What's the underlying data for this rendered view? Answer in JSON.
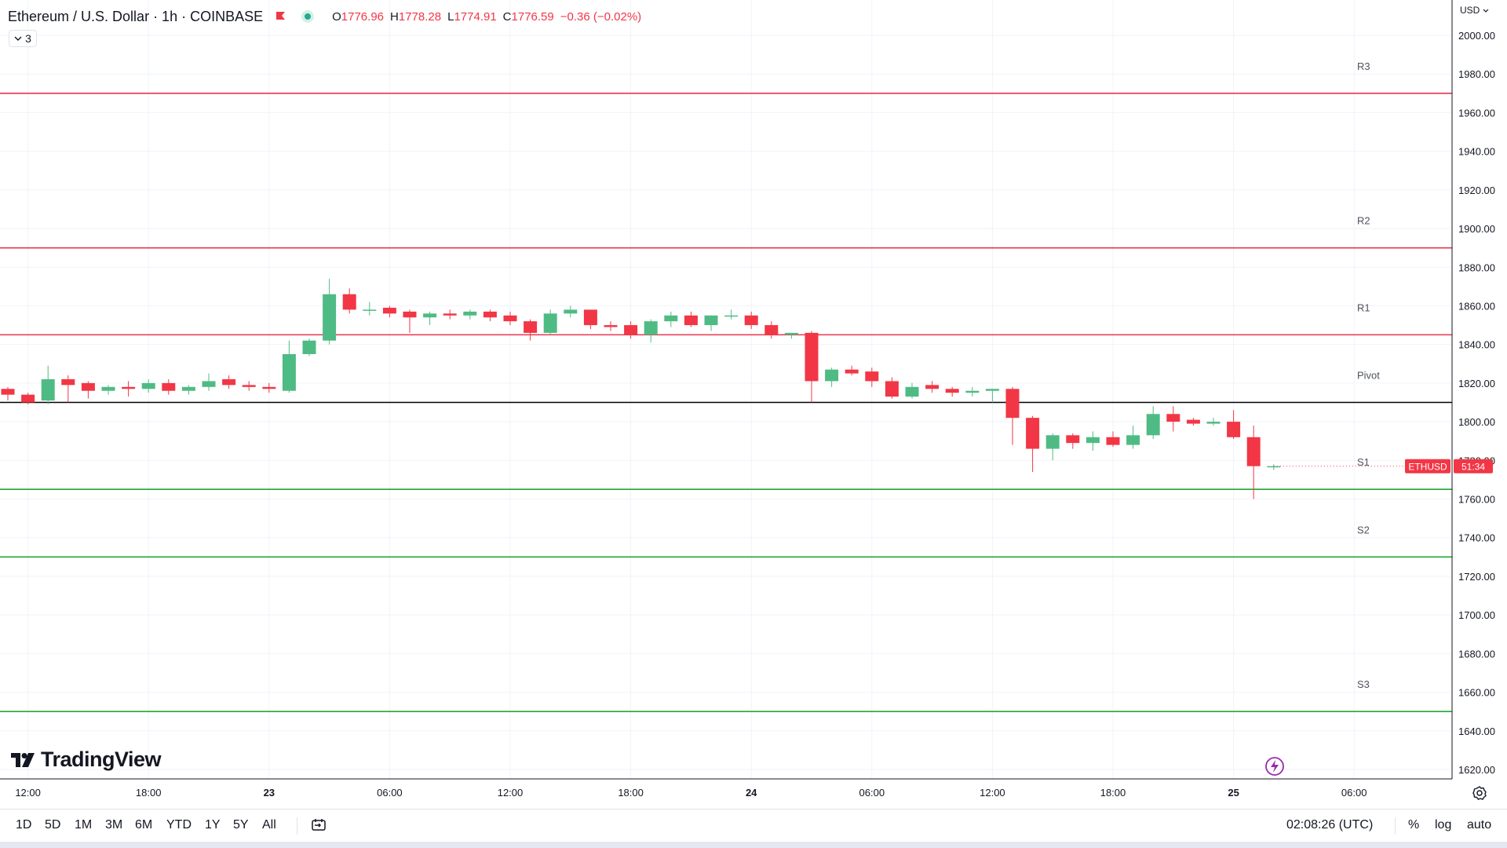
{
  "legend": {
    "symbol": "Ethereum / U.S. Dollar · 1h · COINBASE",
    "open_label": "O",
    "open": "1776.96",
    "high_label": "H",
    "high": "1778.28",
    "low_label": "L",
    "low": "1774.91",
    "close_label": "C",
    "close": "1776.59",
    "change": "−0.36 (−0.02%)",
    "indicators_count": "3"
  },
  "currency": "USD",
  "price_tag": {
    "symbol": "ETHUSD",
    "countdown": "51:34"
  },
  "logo_text": "TradingView",
  "timeframes": [
    "1D",
    "5D",
    "1M",
    "3M",
    "6M",
    "YTD",
    "1Y",
    "5Y",
    "All"
  ],
  "clock": "02:08:26 (UTC)",
  "options": {
    "percent": "%",
    "log": "log",
    "auto": "auto"
  },
  "colors": {
    "up": "#4fbb84",
    "down": "#f23645",
    "resistance": "#e8344e",
    "support": "#22a833",
    "pivot": "#000000"
  },
  "chart_data": {
    "type": "candlestick",
    "ylim": [
      1615,
      2010
    ],
    "y_ticks": [
      1620,
      1640,
      1660,
      1680,
      1700,
      1720,
      1740,
      1760,
      1780,
      1800,
      1820,
      1840,
      1860,
      1880,
      1900,
      1920,
      1940,
      1960,
      1980,
      2000
    ],
    "x_ticks": [
      {
        "label": "12:00",
        "bar": 1
      },
      {
        "label": "18:00",
        "bar": 7
      },
      {
        "label": "23",
        "bar": 13
      },
      {
        "label": "06:00",
        "bar": 19
      },
      {
        "label": "12:00",
        "bar": 25
      },
      {
        "label": "18:00",
        "bar": 31
      },
      {
        "label": "24",
        "bar": 37
      },
      {
        "label": "06:00",
        "bar": 43
      },
      {
        "label": "12:00",
        "bar": 49
      },
      {
        "label": "18:00",
        "bar": 55
      },
      {
        "label": "25",
        "bar": 61
      },
      {
        "label": "06:00",
        "bar": 67
      }
    ],
    "levels": [
      {
        "name": "R3",
        "value": 1970,
        "kind": "resistance"
      },
      {
        "name": "R2",
        "value": 1890,
        "kind": "resistance"
      },
      {
        "name": "R1",
        "value": 1845,
        "kind": "resistance"
      },
      {
        "name": "Pivot",
        "value": 1810,
        "kind": "pivot"
      },
      {
        "name": "S1",
        "value": 1765,
        "kind": "support"
      },
      {
        "name": "S2",
        "value": 1730,
        "kind": "support"
      },
      {
        "name": "S3",
        "value": 1650,
        "kind": "support"
      }
    ],
    "candles": [
      {
        "o": 1817,
        "h": 1818,
        "l": 1811,
        "c": 1814
      },
      {
        "o": 1814,
        "h": 1815,
        "l": 1809,
        "c": 1810
      },
      {
        "o": 1811,
        "h": 1829,
        "l": 1809,
        "c": 1822
      },
      {
        "o": 1822,
        "h": 1824,
        "l": 1810,
        "c": 1819
      },
      {
        "o": 1820,
        "h": 1821,
        "l": 1812,
        "c": 1816
      },
      {
        "o": 1816,
        "h": 1819,
        "l": 1814,
        "c": 1818
      },
      {
        "o": 1818,
        "h": 1821,
        "l": 1813,
        "c": 1817
      },
      {
        "o": 1817,
        "h": 1822,
        "l": 1815,
        "c": 1820
      },
      {
        "o": 1820,
        "h": 1822,
        "l": 1814,
        "c": 1816
      },
      {
        "o": 1816,
        "h": 1819,
        "l": 1814,
        "c": 1818
      },
      {
        "o": 1818,
        "h": 1825,
        "l": 1816,
        "c": 1821
      },
      {
        "o": 1822,
        "h": 1824,
        "l": 1817,
        "c": 1819
      },
      {
        "o": 1819,
        "h": 1821,
        "l": 1816,
        "c": 1818
      },
      {
        "o": 1818,
        "h": 1820,
        "l": 1815,
        "c": 1817
      },
      {
        "o": 1816,
        "h": 1842,
        "l": 1815,
        "c": 1835
      },
      {
        "o": 1835,
        "h": 1843,
        "l": 1834,
        "c": 1842
      },
      {
        "o": 1842,
        "h": 1874,
        "l": 1840,
        "c": 1866
      },
      {
        "o": 1866,
        "h": 1869,
        "l": 1856,
        "c": 1858
      },
      {
        "o": 1858,
        "h": 1862,
        "l": 1855,
        "c": 1858
      },
      {
        "o": 1859,
        "h": 1860,
        "l": 1854,
        "c": 1856
      },
      {
        "o": 1857,
        "h": 1858,
        "l": 1846,
        "c": 1854
      },
      {
        "o": 1854,
        "h": 1857,
        "l": 1850,
        "c": 1856
      },
      {
        "o": 1856,
        "h": 1858,
        "l": 1853,
        "c": 1855
      },
      {
        "o": 1855,
        "h": 1858,
        "l": 1853,
        "c": 1857
      },
      {
        "o": 1857,
        "h": 1858,
        "l": 1852,
        "c": 1854
      },
      {
        "o": 1855,
        "h": 1857,
        "l": 1850,
        "c": 1852
      },
      {
        "o": 1852,
        "h": 1853,
        "l": 1842,
        "c": 1846
      },
      {
        "o": 1846,
        "h": 1858,
        "l": 1845,
        "c": 1856
      },
      {
        "o": 1856,
        "h": 1860,
        "l": 1854,
        "c": 1858
      },
      {
        "o": 1858,
        "h": 1858,
        "l": 1848,
        "c": 1850
      },
      {
        "o": 1850,
        "h": 1852,
        "l": 1847,
        "c": 1849
      },
      {
        "o": 1850,
        "h": 1852,
        "l": 1843,
        "c": 1845
      },
      {
        "o": 1845,
        "h": 1853,
        "l": 1841,
        "c": 1852
      },
      {
        "o": 1852,
        "h": 1857,
        "l": 1849,
        "c": 1855
      },
      {
        "o": 1855,
        "h": 1857,
        "l": 1849,
        "c": 1850
      },
      {
        "o": 1850,
        "h": 1855,
        "l": 1847,
        "c": 1855
      },
      {
        "o": 1855,
        "h": 1858,
        "l": 1853,
        "c": 1855
      },
      {
        "o": 1855,
        "h": 1857,
        "l": 1848,
        "c": 1850
      },
      {
        "o": 1850,
        "h": 1852,
        "l": 1843,
        "c": 1845
      },
      {
        "o": 1845,
        "h": 1846,
        "l": 1843,
        "c": 1846
      },
      {
        "o": 1846,
        "h": 1847,
        "l": 1810,
        "c": 1821
      },
      {
        "o": 1821,
        "h": 1828,
        "l": 1818,
        "c": 1827
      },
      {
        "o": 1827,
        "h": 1829,
        "l": 1824,
        "c": 1825
      },
      {
        "o": 1826,
        "h": 1828,
        "l": 1818,
        "c": 1821
      },
      {
        "o": 1821,
        "h": 1823,
        "l": 1812,
        "c": 1813
      },
      {
        "o": 1813,
        "h": 1820,
        "l": 1812,
        "c": 1818
      },
      {
        "o": 1819,
        "h": 1821,
        "l": 1815,
        "c": 1817
      },
      {
        "o": 1817,
        "h": 1818,
        "l": 1813,
        "c": 1815
      },
      {
        "o": 1815,
        "h": 1818,
        "l": 1813,
        "c": 1816
      },
      {
        "o": 1816,
        "h": 1817,
        "l": 1810,
        "c": 1817
      },
      {
        "o": 1817,
        "h": 1818,
        "l": 1788,
        "c": 1802
      },
      {
        "o": 1802,
        "h": 1803,
        "l": 1774,
        "c": 1786
      },
      {
        "o": 1786,
        "h": 1794,
        "l": 1780,
        "c": 1793
      },
      {
        "o": 1793,
        "h": 1794,
        "l": 1786,
        "c": 1789
      },
      {
        "o": 1789,
        "h": 1795,
        "l": 1785,
        "c": 1792
      },
      {
        "o": 1792,
        "h": 1795,
        "l": 1787,
        "c": 1788
      },
      {
        "o": 1788,
        "h": 1798,
        "l": 1786,
        "c": 1793
      },
      {
        "o": 1793,
        "h": 1808,
        "l": 1791,
        "c": 1804
      },
      {
        "o": 1804,
        "h": 1808,
        "l": 1795,
        "c": 1800
      },
      {
        "o": 1801,
        "h": 1802,
        "l": 1798,
        "c": 1799
      },
      {
        "o": 1799,
        "h": 1802,
        "l": 1798,
        "c": 1800
      },
      {
        "o": 1800,
        "h": 1806,
        "l": 1791,
        "c": 1792
      },
      {
        "o": 1792,
        "h": 1798,
        "l": 1760,
        "c": 1777
      },
      {
        "o": 1777,
        "h": 1778,
        "l": 1775,
        "c": 1777
      }
    ]
  }
}
